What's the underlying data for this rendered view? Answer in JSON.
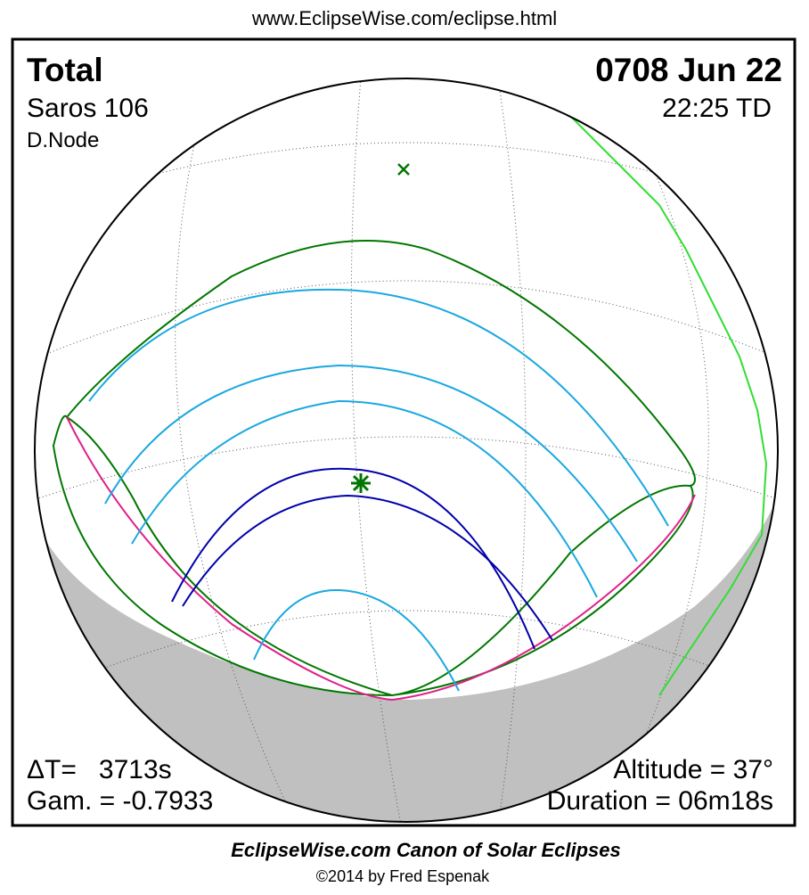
{
  "header": {
    "url": "www.EclipseWise.com/eclipse.html"
  },
  "eclipse": {
    "type": "Total",
    "date": "0708 Jun 22",
    "saros": "Saros 106",
    "time": "22:25 TD",
    "node": "D.Node",
    "delta_t": "ΔT=   3713s",
    "gamma": "Gam. = -0.7933",
    "altitude": "Altitude = 37°",
    "duration": "Duration = 06m18s"
  },
  "footer": {
    "title": "EclipseWise.com Canon of Solar Eclipses",
    "copyright": "©2014 by Fred Espenak"
  }
}
